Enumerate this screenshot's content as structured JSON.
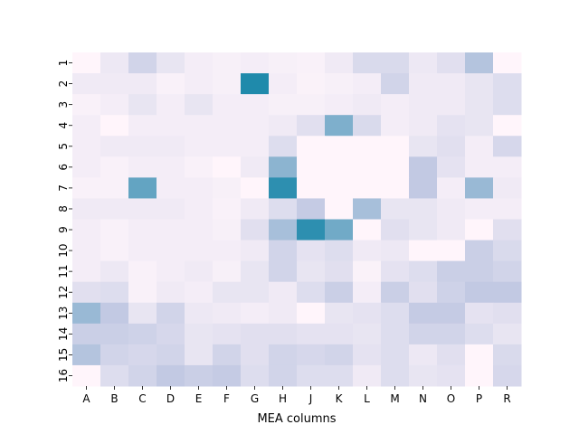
{
  "chart_data": {
    "type": "heatmap",
    "title": "",
    "xlabel": "MEA columns",
    "ylabel": "",
    "x_categories": [
      "A",
      "B",
      "C",
      "D",
      "E",
      "F",
      "G",
      "H",
      "J",
      "K",
      "L",
      "M",
      "N",
      "O",
      "P",
      "R"
    ],
    "y_categories": [
      "1",
      "2",
      "3",
      "4",
      "5",
      "6",
      "7",
      "8",
      "9",
      "10",
      "11",
      "12",
      "13",
      "14",
      "15",
      "16"
    ],
    "colormap": {
      "low": "#fff5fb",
      "mid": "#c2c9e3",
      "high": "#1f8aab"
    },
    "value_range": [
      0,
      1
    ],
    "values": [
      [
        0.0,
        0.12,
        0.3,
        0.15,
        0.07,
        0.05,
        0.07,
        0.05,
        0.04,
        0.1,
        0.25,
        0.25,
        0.12,
        0.2,
        0.45,
        0.0
      ],
      [
        0.1,
        0.1,
        0.1,
        0.04,
        0.07,
        0.05,
        1.0,
        0.07,
        0.03,
        0.05,
        0.07,
        0.3,
        0.1,
        0.1,
        0.15,
        0.22
      ],
      [
        0.04,
        0.07,
        0.15,
        0.07,
        0.15,
        0.07,
        0.07,
        0.05,
        0.05,
        0.07,
        0.1,
        0.07,
        0.1,
        0.1,
        0.15,
        0.22
      ],
      [
        0.07,
        0.0,
        0.07,
        0.07,
        0.07,
        0.07,
        0.07,
        0.1,
        0.2,
        0.65,
        0.25,
        0.07,
        0.1,
        0.17,
        0.15,
        0.0
      ],
      [
        0.07,
        0.1,
        0.1,
        0.1,
        0.07,
        0.07,
        0.07,
        0.22,
        0.0,
        0.0,
        0.0,
        0.0,
        0.15,
        0.2,
        0.07,
        0.27
      ],
      [
        0.07,
        0.04,
        0.07,
        0.07,
        0.04,
        0.0,
        0.1,
        0.6,
        0.0,
        0.0,
        0.0,
        0.0,
        0.4,
        0.17,
        0.07,
        0.07
      ],
      [
        0.04,
        0.04,
        0.75,
        0.07,
        0.07,
        0.05,
        0.0,
        0.95,
        0.0,
        0.0,
        0.0,
        0.0,
        0.4,
        0.07,
        0.55,
        0.1
      ],
      [
        0.1,
        0.1,
        0.1,
        0.1,
        0.07,
        0.04,
        0.1,
        0.22,
        0.38,
        0.0,
        0.5,
        0.15,
        0.15,
        0.1,
        0.07,
        0.07
      ],
      [
        0.07,
        0.04,
        0.07,
        0.07,
        0.07,
        0.05,
        0.2,
        0.5,
        0.95,
        0.7,
        0.0,
        0.2,
        0.15,
        0.1,
        0.0,
        0.2
      ],
      [
        0.07,
        0.04,
        0.07,
        0.07,
        0.07,
        0.07,
        0.1,
        0.3,
        0.17,
        0.22,
        0.1,
        0.12,
        0.0,
        0.0,
        0.35,
        0.25
      ],
      [
        0.07,
        0.12,
        0.04,
        0.07,
        0.1,
        0.05,
        0.15,
        0.3,
        0.15,
        0.2,
        0.03,
        0.17,
        0.22,
        0.35,
        0.35,
        0.3
      ],
      [
        0.2,
        0.22,
        0.04,
        0.1,
        0.07,
        0.15,
        0.15,
        0.1,
        0.22,
        0.35,
        0.07,
        0.35,
        0.2,
        0.32,
        0.4,
        0.4
      ],
      [
        0.55,
        0.4,
        0.15,
        0.3,
        0.12,
        0.1,
        0.07,
        0.1,
        0.0,
        0.15,
        0.17,
        0.22,
        0.38,
        0.38,
        0.17,
        0.2
      ],
      [
        0.35,
        0.35,
        0.32,
        0.27,
        0.15,
        0.17,
        0.2,
        0.2,
        0.17,
        0.17,
        0.15,
        0.22,
        0.3,
        0.3,
        0.22,
        0.15
      ],
      [
        0.45,
        0.3,
        0.27,
        0.3,
        0.15,
        0.3,
        0.2,
        0.3,
        0.27,
        0.3,
        0.17,
        0.22,
        0.12,
        0.2,
        0.0,
        0.25
      ],
      [
        0.0,
        0.22,
        0.3,
        0.4,
        0.35,
        0.38,
        0.22,
        0.3,
        0.22,
        0.22,
        0.1,
        0.22,
        0.15,
        0.17,
        0.0,
        0.27
      ]
    ]
  }
}
